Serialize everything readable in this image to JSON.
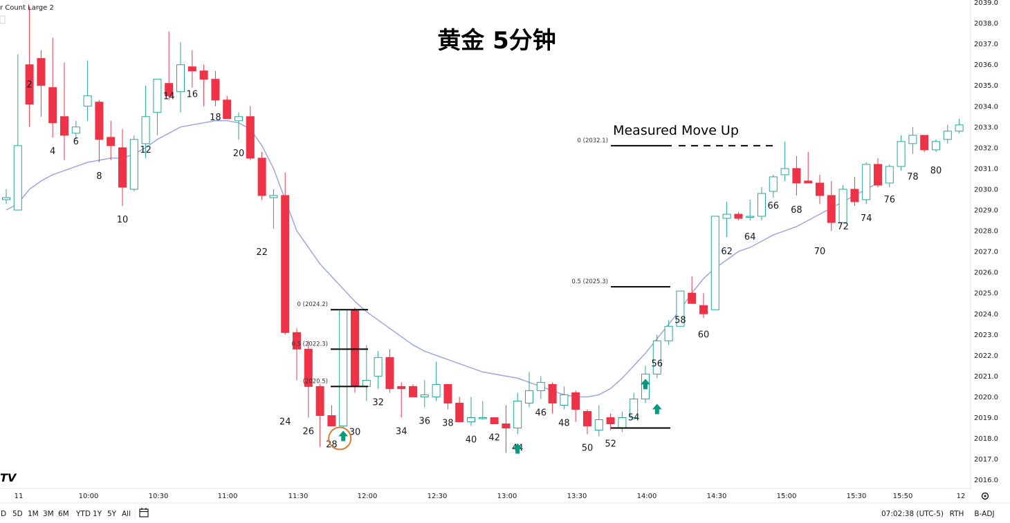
{
  "indicator_label": "r Count Large 2",
  "chart_data": {
    "type": "candlestick",
    "title": "黄金  5分钟",
    "annotation": "Measured Move Up",
    "ylim": [
      2016,
      2039
    ],
    "y_ticks": [
      "2016.0",
      "2017.0",
      "2018.0",
      "2019.0",
      "2020.0",
      "2021.0",
      "2022.0",
      "2023.0",
      "2024.0",
      "2025.0",
      "2026.0",
      "2027.0",
      "2028.0",
      "2029.0",
      "2030.0",
      "2031.0",
      "2032.0",
      "2033.0",
      "2034.0",
      "2035.0",
      "2036.0",
      "2037.0",
      "2038.0",
      "2039.0"
    ],
    "x_ticks": [
      "11",
      "10:00",
      "10:30",
      "11:00",
      "11:30",
      "12:00",
      "12:30",
      "13:00",
      "13:30",
      "14:00",
      "14:30",
      "15:00",
      "15:30",
      "15:50",
      "12"
    ],
    "bars": [
      [
        2029.5,
        2030.0,
        2029.3,
        2029.6
      ],
      [
        2029.0,
        2036.5,
        2032.0,
        2032.1
      ],
      [
        2036.0,
        2038.8,
        2033.0,
        2034.1
      ],
      [
        2036.3,
        2036.7,
        2033.5,
        2035.0
      ],
      [
        2034.9,
        2037.3,
        2032.5,
        2033.2
      ],
      [
        2033.5,
        2036.1,
        2031.4,
        2032.6
      ],
      [
        2032.7,
        2033.3,
        2032.4,
        2033.0
      ],
      [
        2034.0,
        2036.2,
        2033.3,
        2034.5
      ],
      [
        2034.2,
        2034.3,
        2031.3,
        2032.4
      ],
      [
        2032.5,
        2033.3,
        2031.4,
        2032.1
      ],
      [
        2032.0,
        2032.9,
        2029.2,
        2030.1
      ],
      [
        2030.0,
        2032.6,
        2029.9,
        2032.4
      ],
      [
        2032.2,
        2035.0,
        2031.5,
        2033.5
      ],
      [
        2033.7,
        2035.2,
        2032.6,
        2035.3
      ],
      [
        2035.1,
        2037.6,
        2034.3,
        2034.5
      ],
      [
        2034.7,
        2037.1,
        2033.7,
        2036.0
      ],
      [
        2035.9,
        2036.7,
        2034.9,
        2035.7
      ],
      [
        2035.7,
        2036.0,
        2034.0,
        2035.3
      ],
      [
        2035.3,
        2035.7,
        2034.0,
        2034.3
      ],
      [
        2034.3,
        2034.5,
        2033.5,
        2033.4
      ],
      [
        2033.3,
        2033.7,
        2032.4,
        2033.5
      ],
      [
        2033.5,
        2034.0,
        2031.4,
        2031.5
      ],
      [
        2031.5,
        2031.8,
        2029.5,
        2029.7
      ],
      [
        2029.6,
        2030.0,
        2028.1,
        2029.7
      ],
      [
        2029.7,
        2030.8,
        2023.0,
        2023.1
      ],
      [
        2023.1,
        2023.3,
        2020.8,
        2022.3
      ],
      [
        2022.3,
        2022.7,
        2019.0,
        2020.5
      ],
      [
        2020.5,
        2020.6,
        2017.6,
        2019.1
      ],
      [
        2019.1,
        2019.6,
        2018.6,
        2018.6
      ],
      [
        2018.6,
        2024.2,
        2018.5,
        2024.2
      ],
      [
        2024.2,
        2024.3,
        2020.2,
        2020.5
      ],
      [
        2020.5,
        2022.5,
        2019.8,
        2020.8
      ],
      [
        2021.0,
        2022.2,
        2020.4,
        2021.9
      ],
      [
        2021.9,
        2022.3,
        2020.2,
        2020.4
      ],
      [
        2020.5,
        2020.7,
        2019.0,
        2020.4
      ],
      [
        2020.5,
        2020.6,
        2020.0,
        2020.0
      ],
      [
        2020.0,
        2020.8,
        2019.5,
        2020.1
      ],
      [
        2020.0,
        2021.7,
        2019.8,
        2020.6
      ],
      [
        2020.6,
        2020.6,
        2019.4,
        2019.7
      ],
      [
        2019.7,
        2020.0,
        2018.9,
        2018.8
      ],
      [
        2018.8,
        2020.0,
        2018.6,
        2019.0
      ],
      [
        2019.0,
        2019.8,
        2018.9,
        2019.0
      ],
      [
        2019.0,
        2019.0,
        2018.7,
        2018.7
      ],
      [
        2018.7,
        2019.6,
        2017.3,
        2018.5
      ],
      [
        2018.5,
        2020.2,
        2018.2,
        2019.8
      ],
      [
        2019.7,
        2021.2,
        2019.5,
        2020.3
      ],
      [
        2020.3,
        2021.0,
        2019.9,
        2020.7
      ],
      [
        2020.6,
        2020.7,
        2019.2,
        2019.7
      ],
      [
        2019.6,
        2020.5,
        2019.4,
        2020.1
      ],
      [
        2020.2,
        2020.3,
        2018.8,
        2019.4
      ],
      [
        2019.3,
        2019.4,
        2018.2,
        2018.6
      ],
      [
        2018.4,
        2019.6,
        2018.1,
        2018.9
      ],
      [
        2019.0,
        2019.2,
        2018.4,
        2018.7
      ],
      [
        2018.5,
        2019.3,
        2018.3,
        2019.0
      ],
      [
        2019.0,
        2020.2,
        2018.9,
        2019.9
      ],
      [
        2019.9,
        2021.5,
        2019.7,
        2021.1
      ],
      [
        2021.1,
        2023.0,
        2020.9,
        2022.7
      ],
      [
        2022.7,
        2023.7,
        2022.5,
        2023.4
      ],
      [
        2023.4,
        2025.1,
        2023.4,
        2025.1
      ],
      [
        2025.0,
        2025.8,
        2024.5,
        2024.5
      ],
      [
        2024.4,
        2025.0,
        2023.8,
        2024.0
      ],
      [
        2024.2,
        2028.7,
        2024.2,
        2028.7
      ],
      [
        2028.6,
        2029.4,
        2027.7,
        2028.8
      ],
      [
        2028.8,
        2028.9,
        2028.5,
        2028.6
      ],
      [
        2028.7,
        2029.5,
        2028.5,
        2028.7
      ],
      [
        2028.7,
        2030.1,
        2028.5,
        2029.8
      ],
      [
        2029.9,
        2030.7,
        2029.6,
        2030.6
      ],
      [
        2030.7,
        2032.3,
        2030.4,
        2031.0
      ],
      [
        2031.0,
        2031.6,
        2029.7,
        2030.3
      ],
      [
        2030.4,
        2031.8,
        2030.3,
        2030.3
      ],
      [
        2030.3,
        2030.7,
        2029.3,
        2029.7
      ],
      [
        2029.7,
        2030.4,
        2028.0,
        2028.4
      ],
      [
        2028.4,
        2030.2,
        2028.4,
        2030.0
      ],
      [
        2030.0,
        2030.6,
        2029.2,
        2029.4
      ],
      [
        2029.5,
        2031.3,
        2029.3,
        2031.2
      ],
      [
        2031.2,
        2031.5,
        2030.1,
        2030.2
      ],
      [
        2030.3,
        2031.2,
        2030.1,
        2031.1
      ],
      [
        2031.1,
        2032.6,
        2030.9,
        2032.3
      ],
      [
        2032.2,
        2033.0,
        2031.7,
        2032.6
      ],
      [
        2032.6,
        2032.6,
        2031.8,
        2031.9
      ],
      [
        2031.9,
        2032.4,
        2031.8,
        2032.3
      ],
      [
        2032.4,
        2033.1,
        2032.2,
        2032.8
      ],
      [
        2032.8,
        2033.4,
        2032.7,
        2033.1
      ]
    ],
    "bar_count_labels": [
      {
        "bar": 2,
        "text": "2"
      },
      {
        "bar": 4,
        "text": "4"
      },
      {
        "bar": 6,
        "text": "6"
      },
      {
        "bar": 8,
        "text": "8"
      },
      {
        "bar": 10,
        "text": "10"
      },
      {
        "bar": 12,
        "text": "12"
      },
      {
        "bar": 14,
        "text": "14"
      },
      {
        "bar": 16,
        "text": "16"
      },
      {
        "bar": 18,
        "text": "18"
      },
      {
        "bar": 20,
        "text": "20"
      },
      {
        "bar": 22,
        "text": "22"
      },
      {
        "bar": 24,
        "text": "24"
      },
      {
        "bar": 26,
        "text": "26"
      },
      {
        "bar": 28,
        "text": "28"
      },
      {
        "bar": 30,
        "text": "30"
      },
      {
        "bar": 32,
        "text": "32"
      },
      {
        "bar": 34,
        "text": "34"
      },
      {
        "bar": 36,
        "text": "36"
      },
      {
        "bar": 38,
        "text": "38"
      },
      {
        "bar": 40,
        "text": "40"
      },
      {
        "bar": 42,
        "text": "42"
      },
      {
        "bar": 44,
        "text": "44"
      },
      {
        "bar": 46,
        "text": "46"
      },
      {
        "bar": 48,
        "text": "48"
      },
      {
        "bar": 50,
        "text": "50"
      },
      {
        "bar": 52,
        "text": "52"
      },
      {
        "bar": 54,
        "text": "54"
      },
      {
        "bar": 56,
        "text": "56"
      },
      {
        "bar": 58,
        "text": "58"
      },
      {
        "bar": 60,
        "text": "60"
      },
      {
        "bar": 62,
        "text": "62"
      },
      {
        "bar": 64,
        "text": "64"
      },
      {
        "bar": 66,
        "text": "66"
      },
      {
        "bar": 68,
        "text": "68"
      },
      {
        "bar": 70,
        "text": "70"
      },
      {
        "bar": 72,
        "text": "72"
      },
      {
        "bar": 74,
        "text": "74"
      },
      {
        "bar": 76,
        "text": "76"
      },
      {
        "bar": 78,
        "text": "78"
      },
      {
        "bar": 80,
        "text": "80"
      }
    ],
    "ema": [
      2029.0,
      2029.3,
      2030.0,
      2030.4,
      2030.7,
      2030.9,
      2031.1,
      2031.3,
      2031.4,
      2031.5,
      2031.5,
      2031.7,
      2032.0,
      2032.4,
      2032.7,
      2033.0,
      2033.1,
      2033.2,
      2033.3,
      2033.3,
      2033.2,
      2032.9,
      2032.1,
      2031.0,
      2029.5,
      2028.0,
      2027.2,
      2026.4,
      2025.8,
      2025.2,
      2024.6,
      2024.1,
      2023.7,
      2023.3,
      2022.9,
      2022.5,
      2022.2,
      2022.0,
      2021.8,
      2021.6,
      2021.4,
      2021.2,
      2021.1,
      2021.0,
      2020.9,
      2020.7,
      2020.5,
      2020.3,
      2020.1,
      2020.0,
      2020.0,
      2020.1,
      2020.4,
      2020.9,
      2021.5,
      2022.1,
      2022.8,
      2023.5,
      2024.2,
      2025.0,
      2025.7,
      2026.2,
      2026.6,
      2027.0,
      2027.2,
      2027.5,
      2027.8,
      2028.0,
      2028.2,
      2028.5,
      2028.8,
      2029.1,
      2029.4,
      2029.7,
      2030.0,
      2030.3
    ],
    "fib_small": {
      "levels": [
        {
          "label": "0 (2024.2)",
          "price": 2024.2
        },
        {
          "label": "0.5 (2022.3)",
          "price": 2022.3
        },
        {
          "label": "(2020.5)",
          "price": 2020.5
        }
      ]
    },
    "fib_large": {
      "levels": [
        {
          "label": "0 (2032.1)",
          "price": 2032.1
        },
        {
          "label": "0.5 (2025.3)",
          "price": 2025.3
        },
        {
          "label": "",
          "price": 2018.5
        }
      ]
    },
    "signal_arrows": [
      29,
      44,
      55,
      56
    ],
    "highlight_bar": 29
  },
  "toolbar": {
    "ranges": [
      "D",
      "5D",
      "1M",
      "3M",
      "6M",
      "YTD",
      "1Y",
      "5Y",
      "All"
    ],
    "clock": "07:02:38 (UTC-5)",
    "session": "RTH",
    "adjust": "B-ADJ",
    "logo": "TV"
  },
  "colors": {
    "up": "#26a69a",
    "down": "#ef3346",
    "ema": "#9aa6e0",
    "arrow": "#089981",
    "circle": "#e0782f"
  }
}
